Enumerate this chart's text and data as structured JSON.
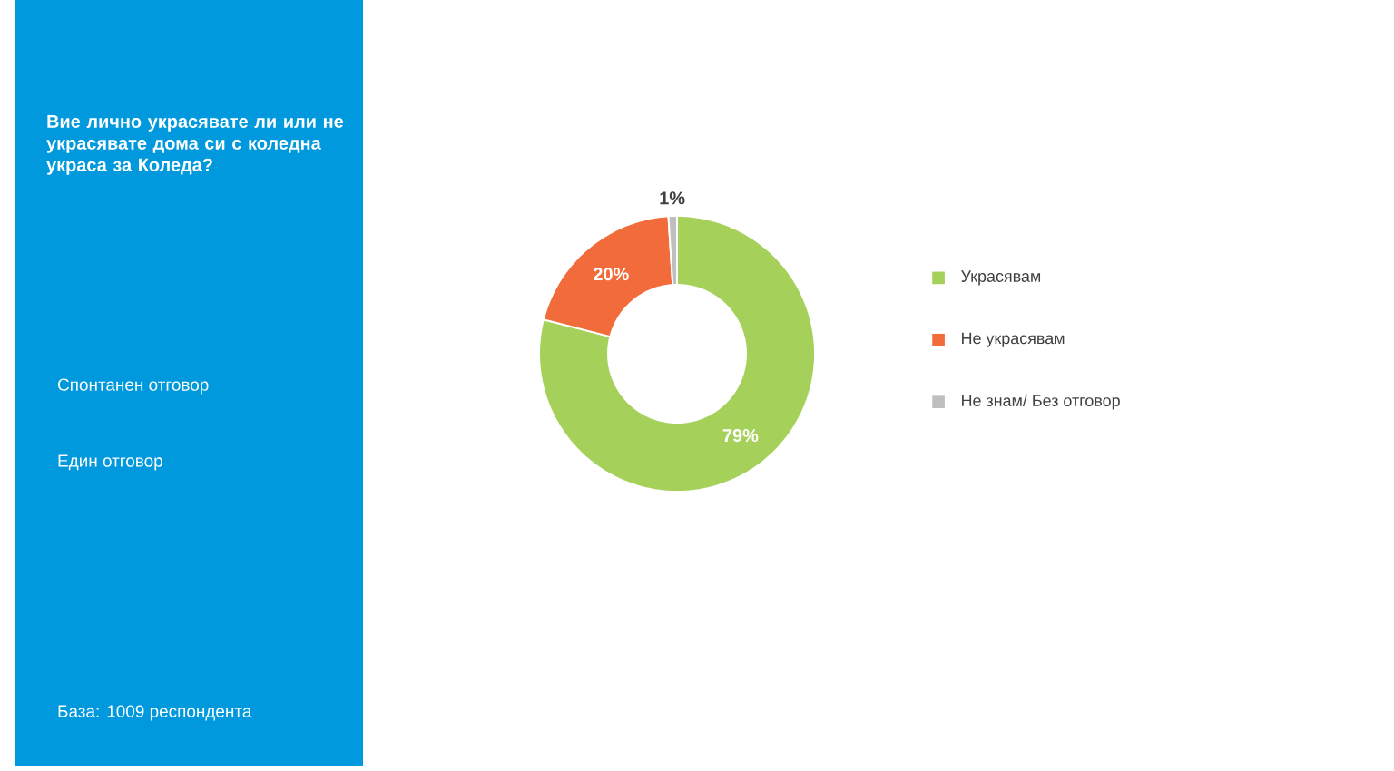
{
  "chart_data": {
    "type": "donut",
    "title": "Вие лично украсявате ли или не украсявате дома си с коледна украса за Коледа?",
    "annotations": [
      "Спонтанен отговор",
      "Един отговор",
      "База:  1009 респондента"
    ],
    "categories": [
      "Украсявам",
      "Не украсявам",
      "Не знам/ Без отговор"
    ],
    "values": [
      79,
      20,
      1
    ],
    "value_labels": [
      "79%",
      "20%",
      "1%"
    ],
    "colors": [
      "#a5d15a",
      "#f26b3a",
      "#bfbfbf"
    ],
    "legend": "right"
  }
}
